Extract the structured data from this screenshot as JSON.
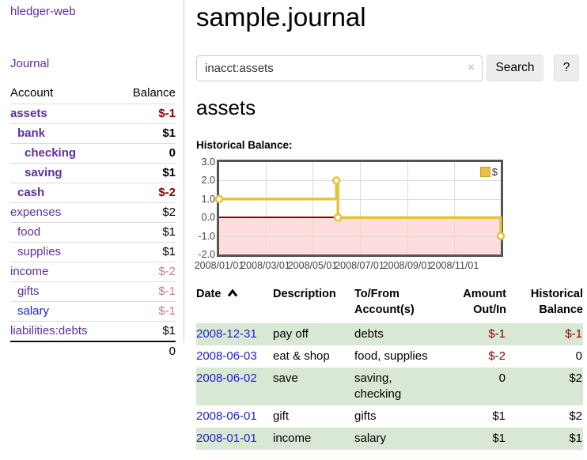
{
  "colors": {
    "purple_link": "#5e2f9d",
    "blue_link": "#2222cc",
    "negative_strong": "#8b0000",
    "negative_soft": "#c38080",
    "row_green": "#d9e8d4",
    "chart_gold": "#e8c240",
    "chart_negative_region": "#ffdddd",
    "chart_zero_line": "#8b0000"
  },
  "sidebar": {
    "app_title": "hledger-web",
    "journal_link": "Journal",
    "table": {
      "account_header": "Account",
      "balance_header": "Balance",
      "rows": [
        {
          "name": "assets",
          "balance": "$-1",
          "indent": 0,
          "bold": true,
          "balance_style": "b-negs"
        },
        {
          "name": "bank",
          "balance": "$1",
          "indent": 1,
          "bold": true,
          "balance_style": "b-bold"
        },
        {
          "name": "checking",
          "balance": "0",
          "indent": 2,
          "bold": true,
          "balance_style": "b-bold"
        },
        {
          "name": "saving",
          "balance": "$1",
          "indent": 2,
          "bold": true,
          "balance_style": "b-bold"
        },
        {
          "name": "cash",
          "balance": "$-2",
          "indent": 1,
          "bold": true,
          "balance_style": "b-negs"
        },
        {
          "name": "expenses",
          "balance": "$2",
          "indent": 0,
          "bold": false,
          "balance_style": ""
        },
        {
          "name": "food",
          "balance": "$1",
          "indent": 1,
          "bold": false,
          "balance_style": ""
        },
        {
          "name": "supplies",
          "balance": "$1",
          "indent": 1,
          "bold": false,
          "balance_style": ""
        },
        {
          "name": "income",
          "balance": "$-2",
          "indent": 0,
          "bold": false,
          "balance_style": "b-soft"
        },
        {
          "name": "gifts",
          "balance": "$-1",
          "indent": 1,
          "bold": false,
          "balance_style": "b-soft"
        },
        {
          "name": "salary",
          "balance": "$-1",
          "indent": 1,
          "bold": false,
          "link_style": "blue",
          "balance_style": "b-soft"
        },
        {
          "name": "liabilities:debts",
          "balance": "$1",
          "indent": 0,
          "bold": false,
          "balance_style": ""
        }
      ],
      "total": "0"
    }
  },
  "main": {
    "title": "sample.journal",
    "search": {
      "value": "inacct:assets",
      "clear_label": "×",
      "search_button": "Search",
      "help_button": "?"
    },
    "heading": "assets",
    "chart_label": "Historical Balance:",
    "register": {
      "headers": {
        "date": "Date",
        "description": "Description",
        "account_line1": "To/From",
        "account_line2": "Account(s)",
        "amount_line1": "Amount",
        "amount_line2": "Out/In",
        "balance_line1": "Historical",
        "balance_line2": "Balance"
      },
      "rows": [
        {
          "date": "2008-12-31",
          "description": "pay off",
          "accounts": "debts",
          "amount": "$-1",
          "balance": "$-1",
          "amount_neg": true,
          "balance_neg": true,
          "highlight": true
        },
        {
          "date": "2008-06-03",
          "description": "eat & shop",
          "accounts": "food, supplies",
          "amount": "$-2",
          "balance": "0",
          "amount_neg": true,
          "balance_neg": false,
          "highlight": false
        },
        {
          "date": "2008-06-02",
          "description": "save",
          "accounts": "saving,\nchecking",
          "amount": "0",
          "balance": "$2",
          "amount_neg": false,
          "balance_neg": false,
          "highlight": true
        },
        {
          "date": "2008-06-01",
          "description": "gift",
          "accounts": "gifts",
          "amount": "$1",
          "balance": "$2",
          "amount_neg": false,
          "balance_neg": false,
          "highlight": false
        },
        {
          "date": "2008-01-01",
          "description": "income",
          "accounts": "salary",
          "amount": "$1",
          "balance": "$1",
          "amount_neg": false,
          "balance_neg": false,
          "highlight": true
        }
      ]
    }
  },
  "chart_data": {
    "type": "line",
    "step": true,
    "title": "Historical Balance:",
    "series": [
      {
        "name": "$",
        "color": "#e8c240",
        "points": [
          [
            "2008-01-01",
            1
          ],
          [
            "2008-06-01",
            2
          ],
          [
            "2008-06-03",
            0
          ],
          [
            "2008-12-31",
            -1
          ]
        ]
      }
    ],
    "x_domain": [
      "2008-01-01",
      "2008-12-31"
    ],
    "ylim": [
      -2,
      3
    ],
    "yticks": [
      "3.0",
      "2.0",
      "1.0",
      "0.0",
      "-1.0",
      "-2.0"
    ],
    "xticks": [
      "2008/01/01",
      "2008/03/01",
      "2008/05/01",
      "2008/07/01",
      "2008/09/01",
      "2008/11/01"
    ],
    "grid": true,
    "legend": {
      "label": "$",
      "position": "top-right"
    },
    "negative_region_color": "#ffdddd",
    "zero_line_color": "#8b0000"
  }
}
